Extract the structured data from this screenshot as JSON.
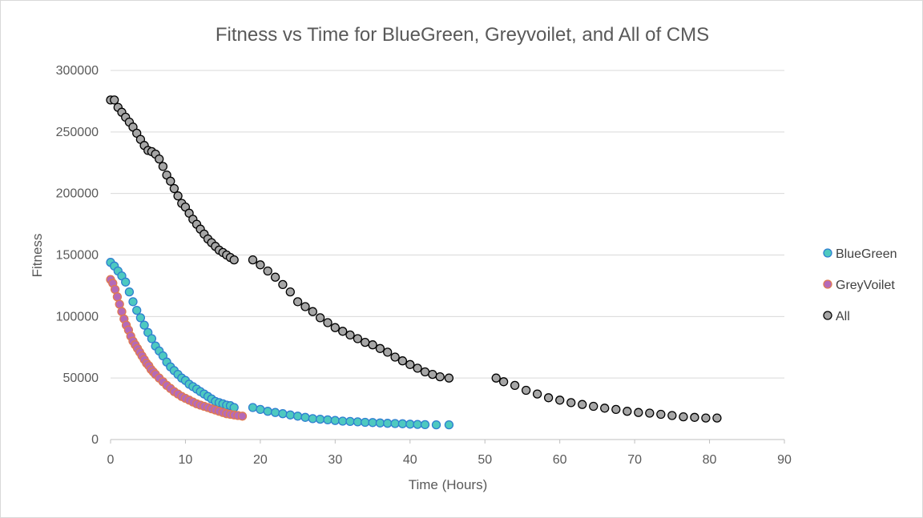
{
  "chart_data": {
    "type": "scatter",
    "title": "Fitness vs Time for BlueGreen, Greyvoilet, and All of CMS",
    "xlabel": "Time (Hours)",
    "ylabel": "Fitness",
    "xlim": [
      0,
      90
    ],
    "ylim": [
      0,
      300000
    ],
    "x_ticks": [
      0,
      10,
      20,
      30,
      40,
      50,
      60,
      70,
      80,
      90
    ],
    "y_ticks": [
      0,
      50000,
      100000,
      150000,
      200000,
      250000,
      300000
    ],
    "grid": "horizontal",
    "legend_position": "right",
    "series": [
      {
        "name": "BlueGreen",
        "fill": "#4ec9c0",
        "edge": "#2e7fd0",
        "points": [
          [
            0,
            144000
          ],
          [
            0.5,
            141000
          ],
          [
            1,
            137000
          ],
          [
            1.5,
            133000
          ],
          [
            2,
            128000
          ],
          [
            2.5,
            120000
          ],
          [
            3,
            112000
          ],
          [
            3.5,
            105000
          ],
          [
            4,
            99000
          ],
          [
            4.5,
            93000
          ],
          [
            5,
            87000
          ],
          [
            5.5,
            82000
          ],
          [
            6,
            76000
          ],
          [
            6.5,
            72000
          ],
          [
            7,
            68000
          ],
          [
            7.5,
            63000
          ],
          [
            8,
            59000
          ],
          [
            8.5,
            56000
          ],
          [
            9,
            53000
          ],
          [
            9.5,
            50000
          ],
          [
            10,
            48000
          ],
          [
            10.5,
            45000
          ],
          [
            11,
            43000
          ],
          [
            11.5,
            41000
          ],
          [
            12,
            39000
          ],
          [
            12.5,
            37000
          ],
          [
            13,
            35000
          ],
          [
            13.5,
            33000
          ],
          [
            14,
            31000
          ],
          [
            14.5,
            30000
          ],
          [
            15,
            29000
          ],
          [
            15.5,
            28000
          ],
          [
            16,
            27500
          ],
          [
            16.5,
            26000
          ],
          [
            19,
            26000
          ],
          [
            20,
            24500
          ],
          [
            21,
            23000
          ],
          [
            22,
            22000
          ],
          [
            23,
            21000
          ],
          [
            24,
            20000
          ],
          [
            25,
            19000
          ],
          [
            26,
            18000
          ],
          [
            27,
            17000
          ],
          [
            28,
            16500
          ],
          [
            29,
            16000
          ],
          [
            30,
            15500
          ],
          [
            31,
            15000
          ],
          [
            32,
            14700
          ],
          [
            33,
            14400
          ],
          [
            34,
            14000
          ],
          [
            35,
            13800
          ],
          [
            36,
            13500
          ],
          [
            37,
            13200
          ],
          [
            38,
            13000
          ],
          [
            39,
            12800
          ],
          [
            40,
            12500
          ],
          [
            41,
            12300
          ],
          [
            42,
            12100
          ],
          [
            43.5,
            12000
          ],
          [
            45.2,
            12000
          ]
        ]
      },
      {
        "name": "GreyVoilet",
        "fill": "#b56ab8",
        "edge": "#e07a50",
        "points": [
          [
            0,
            130000
          ],
          [
            0.3,
            127000
          ],
          [
            0.6,
            122000
          ],
          [
            0.9,
            116000
          ],
          [
            1.2,
            110000
          ],
          [
            1.5,
            104000
          ],
          [
            1.8,
            98000
          ],
          [
            2.1,
            93000
          ],
          [
            2.4,
            89000
          ],
          [
            2.7,
            84000
          ],
          [
            3,
            80000
          ],
          [
            3.3,
            77000
          ],
          [
            3.6,
            74000
          ],
          [
            3.9,
            71000
          ],
          [
            4.2,
            68000
          ],
          [
            4.5,
            65000
          ],
          [
            4.8,
            62000
          ],
          [
            5.1,
            60000
          ],
          [
            5.4,
            57000
          ],
          [
            5.7,
            55000
          ],
          [
            6,
            53000
          ],
          [
            6.5,
            50000
          ],
          [
            7,
            47000
          ],
          [
            7.5,
            44000
          ],
          [
            8,
            41500
          ],
          [
            8.5,
            39000
          ],
          [
            9,
            37000
          ],
          [
            9.5,
            35000
          ],
          [
            10,
            33500
          ],
          [
            10.5,
            32000
          ],
          [
            11,
            30500
          ],
          [
            11.5,
            29000
          ],
          [
            12,
            28000
          ],
          [
            12.5,
            27000
          ],
          [
            13,
            26000
          ],
          [
            13.5,
            25000
          ],
          [
            14,
            24000
          ],
          [
            14.5,
            23000
          ],
          [
            15,
            22000
          ],
          [
            15.5,
            21000
          ],
          [
            16,
            20500
          ],
          [
            16.5,
            20000
          ],
          [
            17,
            19500
          ],
          [
            17.6,
            19000
          ]
        ]
      },
      {
        "name": "All",
        "fill": "#a6a6a6",
        "edge": "#000000",
        "points": [
          [
            0,
            276000
          ],
          [
            0.5,
            276000
          ],
          [
            1,
            270000
          ],
          [
            1.5,
            266000
          ],
          [
            2,
            262000
          ],
          [
            2.5,
            258000
          ],
          [
            3,
            254000
          ],
          [
            3.5,
            249000
          ],
          [
            4,
            244000
          ],
          [
            4.5,
            239000
          ],
          [
            5,
            235000
          ],
          [
            5.5,
            234000
          ],
          [
            6,
            232000
          ],
          [
            6.5,
            228000
          ],
          [
            7,
            222000
          ],
          [
            7.5,
            215000
          ],
          [
            8,
            210000
          ],
          [
            8.5,
            204000
          ],
          [
            9,
            198000
          ],
          [
            9.5,
            192000
          ],
          [
            10,
            189000
          ],
          [
            10.5,
            184000
          ],
          [
            11,
            179000
          ],
          [
            11.5,
            175000
          ],
          [
            12,
            171000
          ],
          [
            12.5,
            167000
          ],
          [
            13,
            163000
          ],
          [
            13.5,
            160000
          ],
          [
            14,
            157000
          ],
          [
            14.5,
            154000
          ],
          [
            15,
            152000
          ],
          [
            15.5,
            150000
          ],
          [
            16,
            148000
          ],
          [
            16.5,
            146000
          ],
          [
            19,
            146000
          ],
          [
            20,
            142000
          ],
          [
            21,
            137000
          ],
          [
            22,
            132000
          ],
          [
            23,
            126000
          ],
          [
            24,
            120000
          ],
          [
            25,
            112000
          ],
          [
            26,
            108000
          ],
          [
            27,
            104000
          ],
          [
            28,
            99000
          ],
          [
            29,
            95000
          ],
          [
            30,
            91000
          ],
          [
            31,
            88000
          ],
          [
            32,
            85000
          ],
          [
            33,
            82000
          ],
          [
            34,
            79000
          ],
          [
            35,
            77000
          ],
          [
            36,
            74000
          ],
          [
            37,
            71000
          ],
          [
            38,
            67000
          ],
          [
            39,
            64000
          ],
          [
            40,
            61000
          ],
          [
            41,
            58000
          ],
          [
            42,
            55000
          ],
          [
            43,
            53000
          ],
          [
            44,
            51000
          ],
          [
            45.2,
            50000
          ],
          [
            51.5,
            50000
          ],
          [
            52.5,
            47000
          ],
          [
            54,
            44000
          ],
          [
            55.5,
            40000
          ],
          [
            57,
            37000
          ],
          [
            58.5,
            34000
          ],
          [
            60,
            32000
          ],
          [
            61.5,
            30000
          ],
          [
            63,
            28500
          ],
          [
            64.5,
            27000
          ],
          [
            66,
            25500
          ],
          [
            67.5,
            24500
          ],
          [
            69,
            23000
          ],
          [
            70.5,
            22000
          ],
          [
            72,
            21500
          ],
          [
            73.5,
            20500
          ],
          [
            75,
            19500
          ],
          [
            76.5,
            18500
          ],
          [
            78,
            18000
          ],
          [
            79.5,
            17500
          ],
          [
            81,
            17500
          ]
        ]
      }
    ]
  }
}
